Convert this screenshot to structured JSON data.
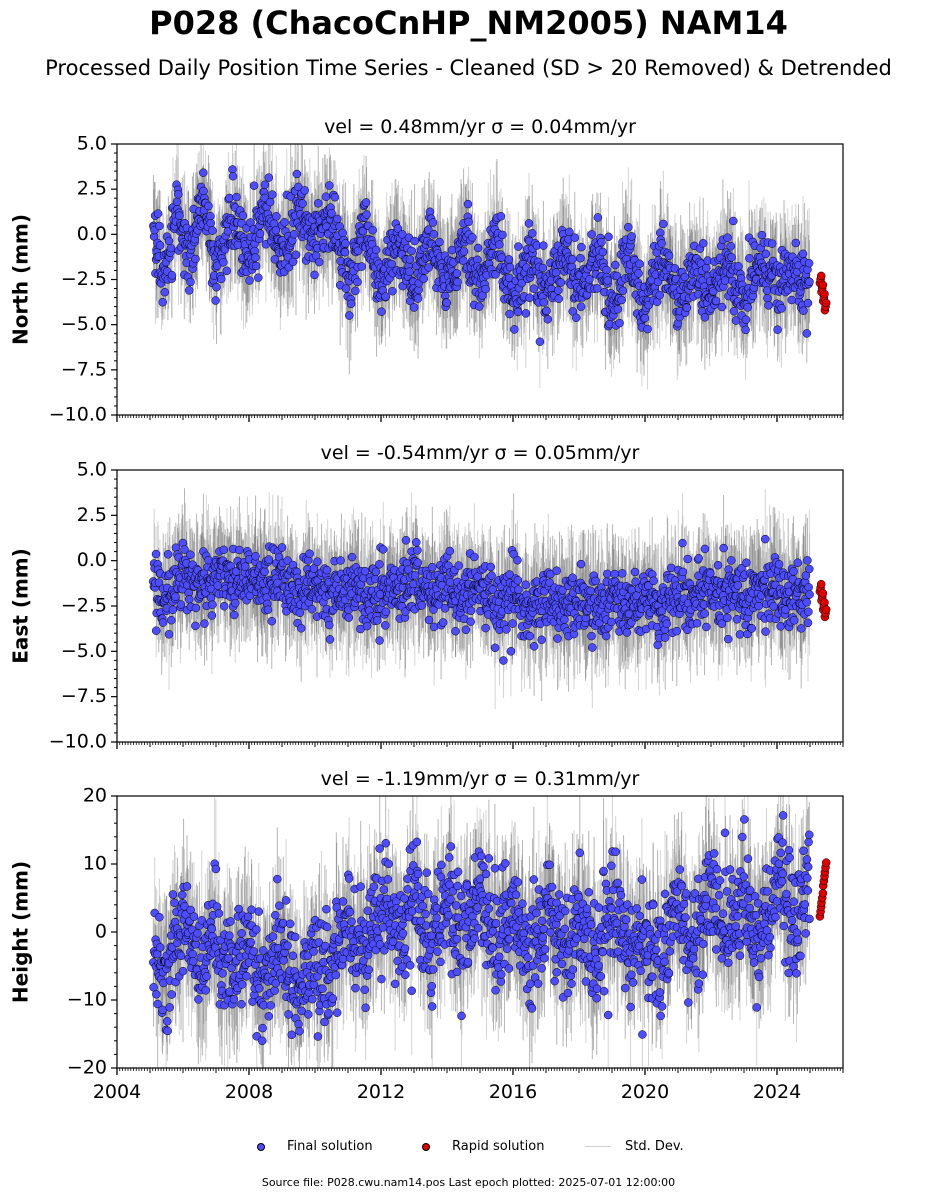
{
  "figure": {
    "title": "P028 (ChacoCnHP_NM2005) NAM14",
    "subtitle": "Processed Daily Position Time Series - Cleaned (SD > 20 Removed) & Detrended",
    "footer": "Source file: P028.cwu.nam14.pos  Last epoch plotted: 2025-07-01 12:00:00"
  },
  "legend": {
    "final": "Final solution",
    "rapid": "Rapid solution",
    "std": "Std. Dev."
  },
  "colors": {
    "final": "#4d4dff",
    "rapid": "#e00000",
    "std": "#cfcfcf",
    "axis": "#000000"
  },
  "chart_data": [
    {
      "type": "scatter",
      "title": "vel = 0.48mm/yr   σ = 0.04mm/yr",
      "ylabel": "North (mm)",
      "xlim": [
        2004,
        2026
      ],
      "ylim": [
        -10,
        5
      ],
      "yticks": [
        "5.0",
        "2.5",
        "0.0",
        "−2.5",
        "−5.0",
        "−7.5",
        "−10.0"
      ],
      "xticks": [],
      "grid": false,
      "series": [
        {
          "name": "Final solution",
          "x": [
            2005.1,
            2005.4,
            2005.8,
            2006.2,
            2006.6,
            2007.0,
            2007.5,
            2008.0,
            2008.5,
            2009.0,
            2009.5,
            2010.0,
            2010.5,
            2011.0,
            2011.5,
            2012.0,
            2012.5,
            2013.0,
            2013.5,
            2014.0,
            2014.5,
            2015.0,
            2015.5,
            2016.0,
            2016.5,
            2017.0,
            2017.5,
            2018.0,
            2018.5,
            2019.0,
            2019.5,
            2020.0,
            2020.5,
            2021.0,
            2021.5,
            2022.0,
            2022.5,
            2023.0,
            2023.5,
            2024.0,
            2024.5,
            2025.0
          ],
          "y": [
            0.5,
            -2.5,
            1.5,
            -1.5,
            2.0,
            -2.0,
            1.5,
            -1.5,
            1.5,
            -1.0,
            1.5,
            -0.5,
            1.0,
            -2.5,
            0.5,
            -3.0,
            0.0,
            -3.0,
            0.0,
            -3.0,
            -0.5,
            -3.0,
            -0.5,
            -3.5,
            -1.0,
            -3.5,
            -1.0,
            -3.5,
            -1.0,
            -4.0,
            -1.0,
            -4.0,
            -1.0,
            -4.0,
            -1.5,
            -3.5,
            -1.5,
            -3.5,
            -1.5,
            -3.0,
            -2.0,
            -3.0
          ]
        },
        {
          "name": "Rapid solution",
          "x": [
            2025.3,
            2025.35,
            2025.4,
            2025.45
          ],
          "y": [
            -2.5,
            -3.0,
            -3.5,
            -4.0
          ]
        }
      ]
    },
    {
      "type": "scatter",
      "title": "vel = -0.54mm/yr   σ = 0.05mm/yr",
      "ylabel": "East (mm)",
      "xlim": [
        2004,
        2026
      ],
      "ylim": [
        -10,
        5
      ],
      "yticks": [
        "5.0",
        "2.5",
        "0.0",
        "−2.5",
        "−5.0",
        "−7.5",
        "−10.0"
      ],
      "xticks": [],
      "grid": false,
      "series": [
        {
          "name": "Final solution",
          "x": [
            2005.1,
            2005.5,
            2006.0,
            2006.5,
            2007.0,
            2007.5,
            2008.0,
            2008.5,
            2009.0,
            2009.5,
            2010.0,
            2010.5,
            2011.0,
            2011.5,
            2012.0,
            2012.5,
            2013.0,
            2013.5,
            2014.0,
            2014.5,
            2015.0,
            2015.5,
            2016.0,
            2016.5,
            2017.0,
            2017.5,
            2018.0,
            2018.5,
            2019.0,
            2019.5,
            2020.0,
            2020.5,
            2021.0,
            2021.5,
            2022.0,
            2022.5,
            2023.0,
            2023.5,
            2024.0,
            2024.5,
            2025.0
          ],
          "y": [
            -1.0,
            -2.0,
            -0.5,
            -1.5,
            -0.5,
            -1.5,
            -0.8,
            -1.5,
            -0.8,
            -1.8,
            -1.0,
            -2.0,
            -1.2,
            -2.2,
            -1.5,
            -2.0,
            -1.2,
            -2.0,
            -1.5,
            -1.8,
            -1.2,
            -2.5,
            -1.8,
            -2.8,
            -2.0,
            -2.5,
            -2.2,
            -2.8,
            -2.0,
            -2.5,
            -2.2,
            -2.8,
            -1.8,
            -2.0,
            -1.5,
            -2.0,
            -1.8,
            -2.0,
            -1.5,
            -2.0,
            -1.8
          ]
        },
        {
          "name": "Rapid solution",
          "x": [
            2025.3,
            2025.35,
            2025.4,
            2025.45
          ],
          "y": [
            -1.5,
            -2.0,
            -2.5,
            -2.9
          ]
        }
      ]
    },
    {
      "type": "scatter",
      "title": "vel = -1.19mm/yr   σ = 0.31mm/yr",
      "ylabel": "Height (mm)",
      "xlim": [
        2004,
        2026
      ],
      "ylim": [
        -20,
        20
      ],
      "yticks": [
        "20",
        "10",
        "0",
        "−10",
        "−20"
      ],
      "xticks": [
        "2004",
        "2008",
        "2012",
        "2016",
        "2020",
        "2024"
      ],
      "grid": false,
      "series": [
        {
          "name": "Final solution",
          "x": [
            2005.1,
            2005.5,
            2006.0,
            2006.5,
            2007.0,
            2007.5,
            2008.0,
            2008.5,
            2009.0,
            2009.5,
            2010.0,
            2010.5,
            2011.0,
            2011.5,
            2012.0,
            2012.5,
            2013.0,
            2013.5,
            2014.0,
            2014.5,
            2015.0,
            2015.5,
            2016.0,
            2016.5,
            2017.0,
            2017.5,
            2018.0,
            2018.5,
            2019.0,
            2019.5,
            2020.0,
            2020.5,
            2021.0,
            2021.5,
            2022.0,
            2022.5,
            2023.0,
            2023.5,
            2024.0,
            2024.5,
            2025.0
          ],
          "y": [
            -2.0,
            -8.0,
            2.0,
            -6.0,
            0.0,
            -8.0,
            -2.0,
            -8.0,
            0.0,
            -10.0,
            -4.0,
            -6.0,
            2.0,
            -4.0,
            4.0,
            0.0,
            6.0,
            -2.0,
            4.0,
            0.0,
            6.0,
            -2.0,
            4.0,
            -4.0,
            4.0,
            -4.0,
            2.0,
            -4.0,
            4.0,
            -4.0,
            0.0,
            -4.0,
            4.0,
            -2.0,
            6.0,
            0.0,
            6.0,
            -2.0,
            8.0,
            2.0,
            6.0
          ]
        },
        {
          "name": "Rapid solution",
          "x": [
            2025.3,
            2025.35,
            2025.4,
            2025.45
          ],
          "y": [
            3.0,
            5.0,
            7.5,
            9.5
          ]
        }
      ]
    }
  ]
}
